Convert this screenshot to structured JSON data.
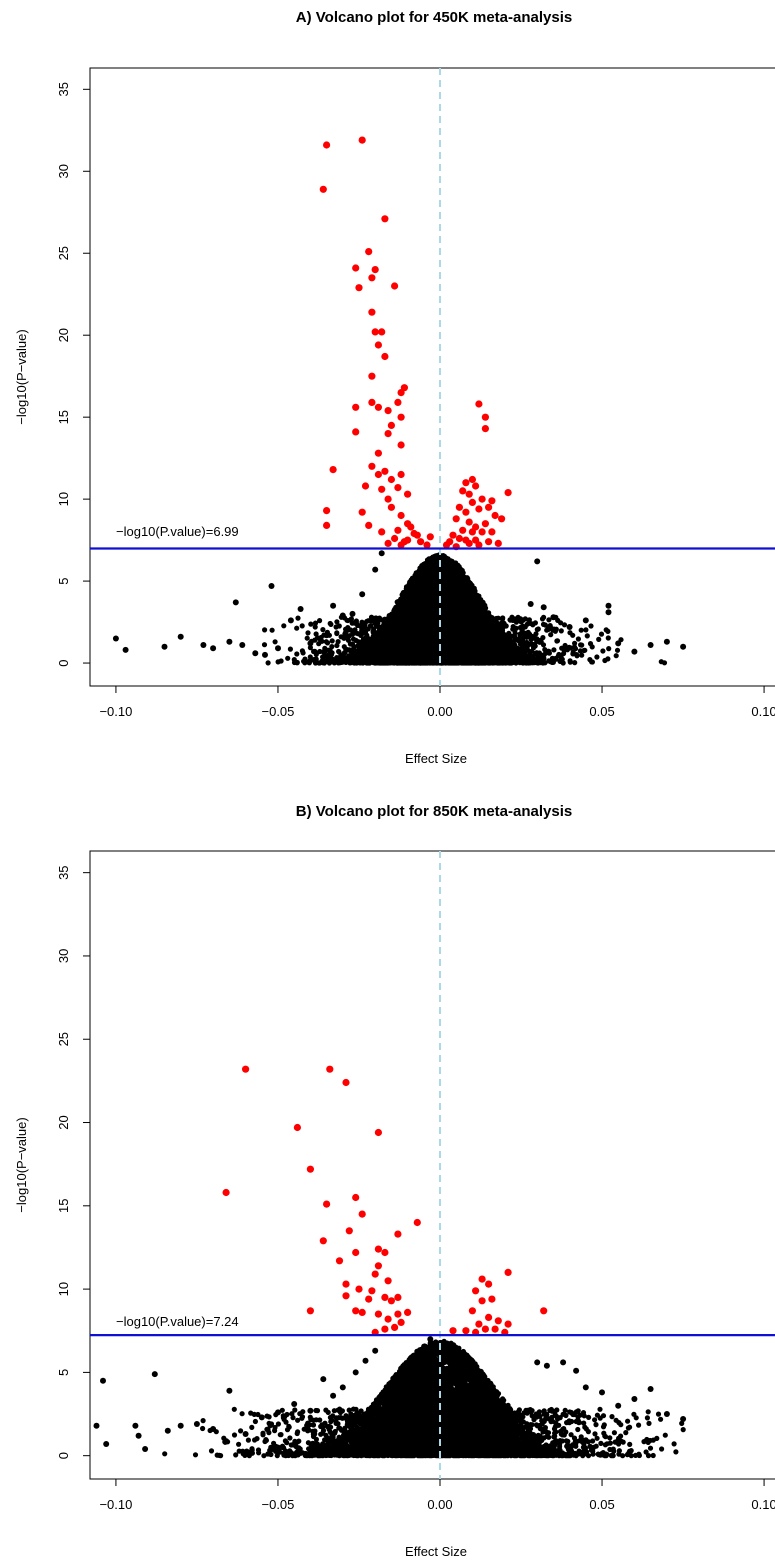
{
  "chart_data": [
    {
      "type": "scatter",
      "title": "A) Volcano plot for 450K meta-analysis",
      "xlabel": "Effect Size",
      "ylabel": "−log10(P−value)",
      "xlim": [
        -0.108,
        0.108
      ],
      "ylim": [
        -1.4,
        36.3
      ],
      "xticks": [
        -0.1,
        -0.05,
        0.0,
        0.05,
        0.1
      ],
      "xtick_labels": [
        "−0.10",
        "−0.05",
        "0.00",
        "0.05",
        "0.10"
      ],
      "yticks": [
        0,
        5,
        10,
        15,
        20,
        25,
        30,
        35
      ],
      "ytick_labels": [
        "0",
        "5",
        "10",
        "15",
        "20",
        "25",
        "30",
        "35"
      ],
      "threshold": 6.99,
      "threshold_label": "−log10(P.value)=6.99",
      "threshold_color": "#1010d0",
      "zero_line_color": "#add8e6",
      "significant_color": "#ff0000",
      "nonsignificant_color": "#000000",
      "significant_points": [
        [
          -0.035,
          31.6
        ],
        [
          -0.024,
          31.9
        ],
        [
          -0.036,
          28.9
        ],
        [
          -0.017,
          27.1
        ],
        [
          -0.022,
          25.1
        ],
        [
          -0.026,
          24.1
        ],
        [
          -0.02,
          24.0
        ],
        [
          -0.021,
          23.5
        ],
        [
          -0.025,
          22.9
        ],
        [
          -0.014,
          23.0
        ],
        [
          -0.021,
          21.4
        ],
        [
          -0.02,
          20.2
        ],
        [
          -0.018,
          20.2
        ],
        [
          -0.019,
          19.4
        ],
        [
          -0.017,
          18.7
        ],
        [
          -0.021,
          17.5
        ],
        [
          -0.011,
          16.8
        ],
        [
          -0.012,
          16.5
        ],
        [
          -0.026,
          15.6
        ],
        [
          -0.021,
          15.9
        ],
        [
          -0.019,
          15.6
        ],
        [
          -0.016,
          15.4
        ],
        [
          -0.013,
          15.9
        ],
        [
          -0.015,
          14.5
        ],
        [
          -0.012,
          15.0
        ],
        [
          -0.026,
          14.1
        ],
        [
          -0.016,
          14.0
        ],
        [
          -0.012,
          13.3
        ],
        [
          -0.019,
          12.8
        ],
        [
          -0.033,
          11.8
        ],
        [
          -0.021,
          12.0
        ],
        [
          -0.019,
          11.5
        ],
        [
          -0.015,
          11.2
        ],
        [
          -0.017,
          11.7
        ],
        [
          -0.012,
          11.5
        ],
        [
          -0.023,
          10.8
        ],
        [
          -0.018,
          10.6
        ],
        [
          -0.013,
          10.7
        ],
        [
          -0.01,
          10.3
        ],
        [
          -0.016,
          10.0
        ],
        [
          -0.035,
          9.3
        ],
        [
          -0.024,
          9.2
        ],
        [
          -0.022,
          8.4
        ],
        [
          -0.015,
          9.5
        ],
        [
          -0.012,
          9.0
        ],
        [
          -0.01,
          8.5
        ],
        [
          -0.035,
          8.4
        ],
        [
          -0.018,
          8.0
        ],
        [
          -0.013,
          8.1
        ],
        [
          -0.009,
          8.3
        ],
        [
          -0.008,
          7.9
        ],
        [
          -0.014,
          7.6
        ],
        [
          -0.011,
          7.4
        ],
        [
          -0.006,
          7.4
        ],
        [
          -0.003,
          7.7
        ],
        [
          -0.007,
          7.8
        ],
        [
          -0.01,
          7.5
        ],
        [
          -0.016,
          7.3
        ],
        [
          -0.004,
          7.2
        ],
        [
          -0.012,
          7.2
        ],
        [
          0.012,
          15.8
        ],
        [
          0.014,
          15.0
        ],
        [
          0.014,
          14.3
        ],
        [
          0.01,
          11.2
        ],
        [
          0.008,
          11.0
        ],
        [
          0.011,
          10.8
        ],
        [
          0.007,
          10.5
        ],
        [
          0.009,
          10.3
        ],
        [
          0.013,
          10.0
        ],
        [
          0.016,
          9.9
        ],
        [
          0.021,
          10.4
        ],
        [
          0.01,
          9.8
        ],
        [
          0.006,
          9.5
        ],
        [
          0.008,
          9.2
        ],
        [
          0.012,
          9.4
        ],
        [
          0.015,
          9.5
        ],
        [
          0.017,
          9.0
        ],
        [
          0.019,
          8.8
        ],
        [
          0.005,
          8.8
        ],
        [
          0.009,
          8.6
        ],
        [
          0.011,
          8.3
        ],
        [
          0.014,
          8.5
        ],
        [
          0.007,
          8.1
        ],
        [
          0.01,
          8.0
        ],
        [
          0.013,
          8.0
        ],
        [
          0.016,
          8.0
        ],
        [
          0.004,
          7.8
        ],
        [
          0.006,
          7.6
        ],
        [
          0.008,
          7.5
        ],
        [
          0.011,
          7.5
        ],
        [
          0.003,
          7.4
        ],
        [
          0.009,
          7.3
        ],
        [
          0.012,
          7.2
        ],
        [
          0.015,
          7.4
        ],
        [
          0.018,
          7.3
        ],
        [
          0.002,
          7.2
        ],
        [
          0.005,
          7.1
        ]
      ],
      "nonsignificant_points": [
        [
          -0.1,
          1.5
        ],
        [
          -0.097,
          0.8
        ],
        [
          -0.085,
          1.0
        ],
        [
          -0.08,
          1.6
        ],
        [
          -0.073,
          1.1
        ],
        [
          -0.07,
          0.9
        ],
        [
          -0.065,
          1.3
        ],
        [
          -0.063,
          3.7
        ],
        [
          -0.061,
          1.1
        ],
        [
          -0.057,
          0.6
        ],
        [
          -0.054,
          0.5
        ],
        [
          -0.052,
          4.7
        ],
        [
          -0.05,
          0.9
        ],
        [
          -0.046,
          2.6
        ],
        [
          -0.043,
          3.3
        ],
        [
          -0.04,
          1.2
        ],
        [
          -0.035,
          1.7
        ],
        [
          -0.033,
          3.5
        ],
        [
          -0.03,
          2.9
        ],
        [
          -0.027,
          3.0
        ],
        [
          -0.024,
          4.2
        ],
        [
          -0.02,
          5.7
        ],
        [
          -0.018,
          6.7
        ],
        [
          0.03,
          6.2
        ],
        [
          0.028,
          3.6
        ],
        [
          0.032,
          3.4
        ],
        [
          0.035,
          2.8
        ],
        [
          0.04,
          2.2
        ],
        [
          0.045,
          2.6
        ],
        [
          0.052,
          3.5
        ],
        [
          0.052,
          3.1
        ],
        [
          0.055,
          1.2
        ],
        [
          0.06,
          0.7
        ],
        [
          0.065,
          1.1
        ],
        [
          0.07,
          1.3
        ],
        [
          0.075,
          1.0
        ],
        [
          0.078,
          1.2
        ],
        [
          0.082,
          1.7
        ],
        [
          0.084,
          0.9
        ],
        [
          0.095,
          2.0
        ],
        [
          0.095,
          1.1
        ],
        [
          0.102,
          1.2
        ]
      ],
      "cloud": {
        "core_sd": 0.0062,
        "core_mean_offset": 0.006,
        "core_peak": 6.6,
        "tail_sd": 0.018
      }
    },
    {
      "type": "scatter",
      "title": "B) Volcano plot for 850K meta-analysis",
      "xlabel": "Effect Size",
      "ylabel": "−log10(P−value)",
      "xlim": [
        -0.108,
        0.108
      ],
      "ylim": [
        -1.4,
        36.3
      ],
      "xticks": [
        -0.1,
        -0.05,
        0.0,
        0.05,
        0.1
      ],
      "xtick_labels": [
        "−0.10",
        "−0.05",
        "0.00",
        "0.05",
        "0.10"
      ],
      "yticks": [
        0,
        5,
        10,
        15,
        20,
        25,
        30,
        35
      ],
      "ytick_labels": [
        "0",
        "5",
        "10",
        "15",
        "20",
        "25",
        "30",
        "35"
      ],
      "threshold": 7.24,
      "threshold_label": "−log10(P.value)=7.24",
      "threshold_color": "#1010d0",
      "zero_line_color": "#add8e6",
      "significant_color": "#ff0000",
      "nonsignificant_color": "#000000",
      "significant_points": [
        [
          -0.06,
          23.2
        ],
        [
          -0.034,
          23.2
        ],
        [
          -0.029,
          22.4
        ],
        [
          -0.044,
          19.7
        ],
        [
          -0.019,
          19.4
        ],
        [
          -0.04,
          17.2
        ],
        [
          -0.066,
          15.8
        ],
        [
          -0.026,
          15.5
        ],
        [
          -0.035,
          15.1
        ],
        [
          -0.024,
          14.5
        ],
        [
          -0.007,
          14.0
        ],
        [
          -0.013,
          13.3
        ],
        [
          -0.028,
          13.5
        ],
        [
          -0.036,
          12.9
        ],
        [
          -0.019,
          12.4
        ],
        [
          -0.017,
          12.2
        ],
        [
          -0.026,
          12.2
        ],
        [
          -0.031,
          11.7
        ],
        [
          -0.019,
          11.4
        ],
        [
          -0.02,
          10.9
        ],
        [
          -0.016,
          10.5
        ],
        [
          -0.029,
          10.3
        ],
        [
          -0.025,
          10.0
        ],
        [
          -0.021,
          9.9
        ],
        [
          -0.017,
          9.5
        ],
        [
          -0.013,
          9.5
        ],
        [
          -0.029,
          9.6
        ],
        [
          -0.022,
          9.4
        ],
        [
          -0.015,
          9.3
        ],
        [
          -0.01,
          8.6
        ],
        [
          -0.04,
          8.7
        ],
        [
          -0.026,
          8.7
        ],
        [
          -0.024,
          8.6
        ],
        [
          -0.019,
          8.5
        ],
        [
          -0.013,
          8.5
        ],
        [
          -0.016,
          8.2
        ],
        [
          -0.012,
          8.0
        ],
        [
          -0.014,
          7.7
        ],
        [
          -0.017,
          7.6
        ],
        [
          -0.02,
          7.4
        ],
        [
          0.013,
          10.6
        ],
        [
          0.021,
          11.0
        ],
        [
          0.015,
          10.3
        ],
        [
          0.011,
          9.9
        ],
        [
          0.016,
          9.4
        ],
        [
          0.013,
          9.3
        ],
        [
          0.032,
          8.7
        ],
        [
          0.01,
          8.7
        ],
        [
          0.015,
          8.3
        ],
        [
          0.018,
          8.1
        ],
        [
          0.012,
          7.9
        ],
        [
          0.021,
          7.9
        ],
        [
          0.014,
          7.6
        ],
        [
          0.017,
          7.6
        ],
        [
          0.008,
          7.5
        ],
        [
          0.004,
          7.5
        ],
        [
          0.02,
          7.4
        ],
        [
          0.011,
          7.4
        ]
      ],
      "nonsignificant_points": [
        [
          -0.106,
          1.8
        ],
        [
          -0.104,
          4.5
        ],
        [
          -0.103,
          0.7
        ],
        [
          -0.094,
          1.8
        ],
        [
          -0.093,
          1.2
        ],
        [
          -0.091,
          0.4
        ],
        [
          -0.088,
          4.9
        ],
        [
          -0.084,
          1.5
        ],
        [
          -0.08,
          1.8
        ],
        [
          -0.075,
          1.9
        ],
        [
          -0.07,
          1.6
        ],
        [
          -0.065,
          3.9
        ],
        [
          -0.06,
          1.3
        ],
        [
          -0.055,
          2.3
        ],
        [
          -0.05,
          2.6
        ],
        [
          -0.045,
          3.1
        ],
        [
          -0.04,
          2.7
        ],
        [
          -0.036,
          4.6
        ],
        [
          -0.033,
          3.6
        ],
        [
          -0.03,
          4.1
        ],
        [
          -0.026,
          5.0
        ],
        [
          -0.023,
          5.7
        ],
        [
          -0.02,
          6.3
        ],
        [
          -0.003,
          7.0
        ],
        [
          0.03,
          5.6
        ],
        [
          0.033,
          5.4
        ],
        [
          0.038,
          5.6
        ],
        [
          0.042,
          5.1
        ],
        [
          0.045,
          4.1
        ],
        [
          0.05,
          3.8
        ],
        [
          0.055,
          3.0
        ],
        [
          0.06,
          3.4
        ],
        [
          0.065,
          4.0
        ],
        [
          0.07,
          2.5
        ],
        [
          0.075,
          2.2
        ],
        [
          0.08,
          2.5
        ],
        [
          0.083,
          3.7
        ],
        [
          0.085,
          1.3
        ],
        [
          0.088,
          1.8
        ],
        [
          0.093,
          2.5
        ],
        [
          0.095,
          2.2
        ],
        [
          0.098,
          1.8
        ],
        [
          0.1,
          1.3
        ],
        [
          0.103,
          2.0
        ]
      ],
      "cloud": {
        "core_sd": 0.0078,
        "core_mean_offset": 0.009,
        "core_peak": 6.9,
        "tail_sd": 0.026
      }
    }
  ]
}
